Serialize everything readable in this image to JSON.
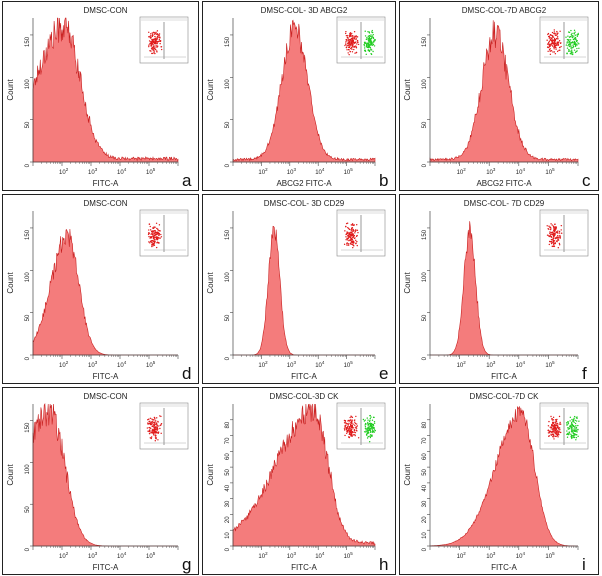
{
  "figure": {
    "fill_color": "#f47c7c",
    "stroke_color": "#c81e1e",
    "gate_positive_color": "#22cc22",
    "dot_color": "#e01b1b"
  },
  "chart_data": [
    {
      "type": "area",
      "panel_letter": "a",
      "title": "DMSC-CON",
      "xlabel": "FITC-A",
      "ylabel": "Count",
      "x_scale": "log",
      "xlim": [
        10,
        1000000
      ],
      "ylim": [
        0,
        170
      ],
      "x_ticks": [
        "10^2",
        "10^3",
        "10^4",
        "10^5"
      ],
      "y_ticks": [
        0,
        50,
        100,
        150
      ],
      "peak_x": 120,
      "peak_y": 155,
      "width_decades": 0.55,
      "skew": 1.8,
      "noise": 0.12,
      "baseline": 4,
      "inset": {
        "positive_gate": false
      }
    },
    {
      "type": "area",
      "panel_letter": "b",
      "title": "DMSC-COL- 3D ABCG2",
      "xlabel": "ABCG2 FITC-A",
      "ylabel": "Count",
      "x_scale": "log",
      "xlim": [
        10,
        1000000
      ],
      "ylim": [
        0,
        170
      ],
      "x_ticks": [
        "10^2",
        "10^3",
        "10^4",
        "10^5"
      ],
      "y_ticks": [
        0,
        50,
        100,
        150
      ],
      "peak_x": 1500,
      "peak_y": 155,
      "width_decades": 0.45,
      "skew": 1.0,
      "noise": 0.1,
      "baseline": 3,
      "inset": {
        "positive_gate": true
      }
    },
    {
      "type": "area",
      "panel_letter": "c",
      "title": "DMSC-COL-7D ABCG2",
      "xlabel": "ABCG2 FITC-A",
      "ylabel": "Count",
      "x_scale": "log",
      "xlim": [
        10,
        1000000
      ],
      "ylim": [
        0,
        170
      ],
      "x_ticks": [
        "10^2",
        "10^3",
        "10^4",
        "10^5"
      ],
      "y_ticks": [
        0,
        50,
        100,
        150
      ],
      "peak_x": 1600,
      "peak_y": 150,
      "width_decades": 0.45,
      "skew": 1.0,
      "noise": 0.12,
      "baseline": 3,
      "inset": {
        "positive_gate": true
      }
    },
    {
      "type": "area",
      "panel_letter": "d",
      "title": "DMSC-CON",
      "xlabel": "FITC-A",
      "ylabel": "Count",
      "x_scale": "log",
      "xlim": [
        10,
        1000000
      ],
      "ylim": [
        0,
        170
      ],
      "x_ticks": [
        "10^2",
        "10^3",
        "10^4",
        "10^5"
      ],
      "y_ticks": [
        0,
        50,
        100,
        150
      ],
      "peak_x": 150,
      "peak_y": 140,
      "width_decades": 0.4,
      "skew": 1.4,
      "noise": 0.1,
      "baseline": 0,
      "inset": {
        "positive_gate": false
      }
    },
    {
      "type": "area",
      "panel_letter": "e",
      "title": "DMSC-COL- 3D CD29",
      "xlabel": "FITC-A",
      "ylabel": "Count",
      "x_scale": "log",
      "xlim": [
        10,
        1000000
      ],
      "ylim": [
        0,
        170
      ],
      "x_ticks": [
        "10^2",
        "10^3",
        "10^4",
        "10^5"
      ],
      "y_ticks": [
        0,
        50,
        100,
        150
      ],
      "peak_x": 280,
      "peak_y": 150,
      "width_decades": 0.2,
      "skew": 1.0,
      "noise": 0.08,
      "baseline": 0,
      "inset": {
        "positive_gate": false
      }
    },
    {
      "type": "area",
      "panel_letter": "f",
      "title": "DMSC-COL- 7D CD29",
      "xlabel": "FITC-A",
      "ylabel": "Count",
      "x_scale": "log",
      "xlim": [
        10,
        1000000
      ],
      "ylim": [
        0,
        170
      ],
      "x_ticks": [
        "10^2",
        "10^3",
        "10^4",
        "10^5"
      ],
      "y_ticks": [
        0,
        50,
        100,
        150
      ],
      "peak_x": 220,
      "peak_y": 145,
      "width_decades": 0.2,
      "skew": 1.0,
      "noise": 0.1,
      "baseline": 0,
      "inset": {
        "positive_gate": false
      }
    },
    {
      "type": "area",
      "panel_letter": "g",
      "title": "DMSC-CON",
      "xlabel": "FITC-A",
      "ylabel": "Count",
      "x_scale": "log",
      "xlim": [
        10,
        1000000
      ],
      "ylim": [
        0,
        170
      ],
      "x_ticks": [
        "10^2",
        "10^3",
        "10^4",
        "10^5"
      ],
      "y_ticks": [
        0,
        50,
        100,
        150
      ],
      "peak_x": 40,
      "peak_y": 160,
      "width_decades": 0.5,
      "skew": 2.2,
      "noise": 0.12,
      "baseline": 0,
      "inset": {
        "positive_gate": false
      }
    },
    {
      "type": "area",
      "panel_letter": "h",
      "title": "DMSC-COL-3D CK",
      "xlabel": "FITC-A",
      "ylabel": "Count",
      "x_scale": "log",
      "xlim": [
        10,
        1000000
      ],
      "ylim": [
        0,
        90
      ],
      "x_ticks": [
        "10^2",
        "10^3",
        "10^4",
        "10^5"
      ],
      "y_ticks": [
        0,
        10,
        20,
        30,
        40,
        50,
        60,
        70,
        80
      ],
      "peak_x": 7000,
      "peak_y": 85,
      "width_decades": 0.5,
      "skew": 2.6,
      "noise": 0.1,
      "baseline": 2,
      "inset": {
        "positive_gate": true
      }
    },
    {
      "type": "area",
      "panel_letter": "i",
      "title": "DMSC-COL-7D CK",
      "xlabel": "FITC-A",
      "ylabel": "Count",
      "x_scale": "log",
      "xlim": [
        10,
        1000000
      ],
      "ylim": [
        0,
        90
      ],
      "x_ticks": [
        "10^2",
        "10^3",
        "10^4",
        "10^5"
      ],
      "y_ticks": [
        0,
        10,
        20,
        30,
        40,
        50,
        60,
        70,
        80
      ],
      "peak_x": 12000,
      "peak_y": 85,
      "width_decades": 0.45,
      "skew": 1.9,
      "noise": 0.06,
      "baseline": 0,
      "inset": {
        "positive_gate": true
      }
    }
  ]
}
